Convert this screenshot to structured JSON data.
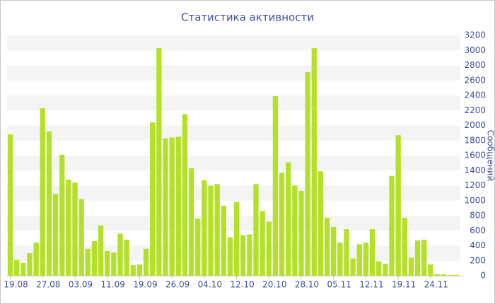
{
  "chart_data": {
    "type": "bar",
    "title": "Статистика активности",
    "y_label": "Сообщений",
    "categories": [
      "19.08",
      null,
      null,
      null,
      null,
      "27.08",
      null,
      null,
      null,
      null,
      "03.09",
      null,
      null,
      null,
      null,
      "11.09",
      null,
      null,
      null,
      null,
      "19.09",
      null,
      null,
      null,
      null,
      "26.09",
      null,
      null,
      null,
      null,
      "04.10",
      null,
      null,
      null,
      null,
      "12.10",
      null,
      null,
      null,
      null,
      "20.10",
      null,
      null,
      null,
      null,
      "28.10",
      null,
      null,
      null,
      null,
      "05.11",
      null,
      null,
      null,
      null,
      "12.11",
      null,
      null,
      null,
      null,
      "19.11",
      null,
      null,
      null,
      null,
      "24.11",
      null,
      null,
      null,
      null
    ],
    "values": [
      1880,
      210,
      170,
      300,
      440,
      2230,
      1920,
      1090,
      1610,
      1280,
      1240,
      1020,
      360,
      460,
      670,
      330,
      310,
      560,
      480,
      140,
      150,
      360,
      2040,
      3030,
      1830,
      1840,
      1850,
      2150,
      1430,
      760,
      1270,
      1200,
      1220,
      930,
      510,
      980,
      540,
      550,
      1220,
      860,
      720,
      2390,
      1370,
      1510,
      1200,
      1130,
      2710,
      3030,
      1390,
      770,
      650,
      440,
      620,
      230,
      420,
      440,
      620,
      190,
      160,
      1330,
      1870,
      770,
      240,
      470,
      480,
      150,
      20,
      20,
      10,
      10
    ],
    "color": "#b5e02a",
    "ylim": [
      0,
      3200
    ],
    "yticks": [
      0,
      200,
      400,
      600,
      800,
      1000,
      1200,
      1400,
      1600,
      1800,
      2000,
      2200,
      2400,
      2600,
      2800,
      3000,
      3200
    ],
    "grid": true
  }
}
